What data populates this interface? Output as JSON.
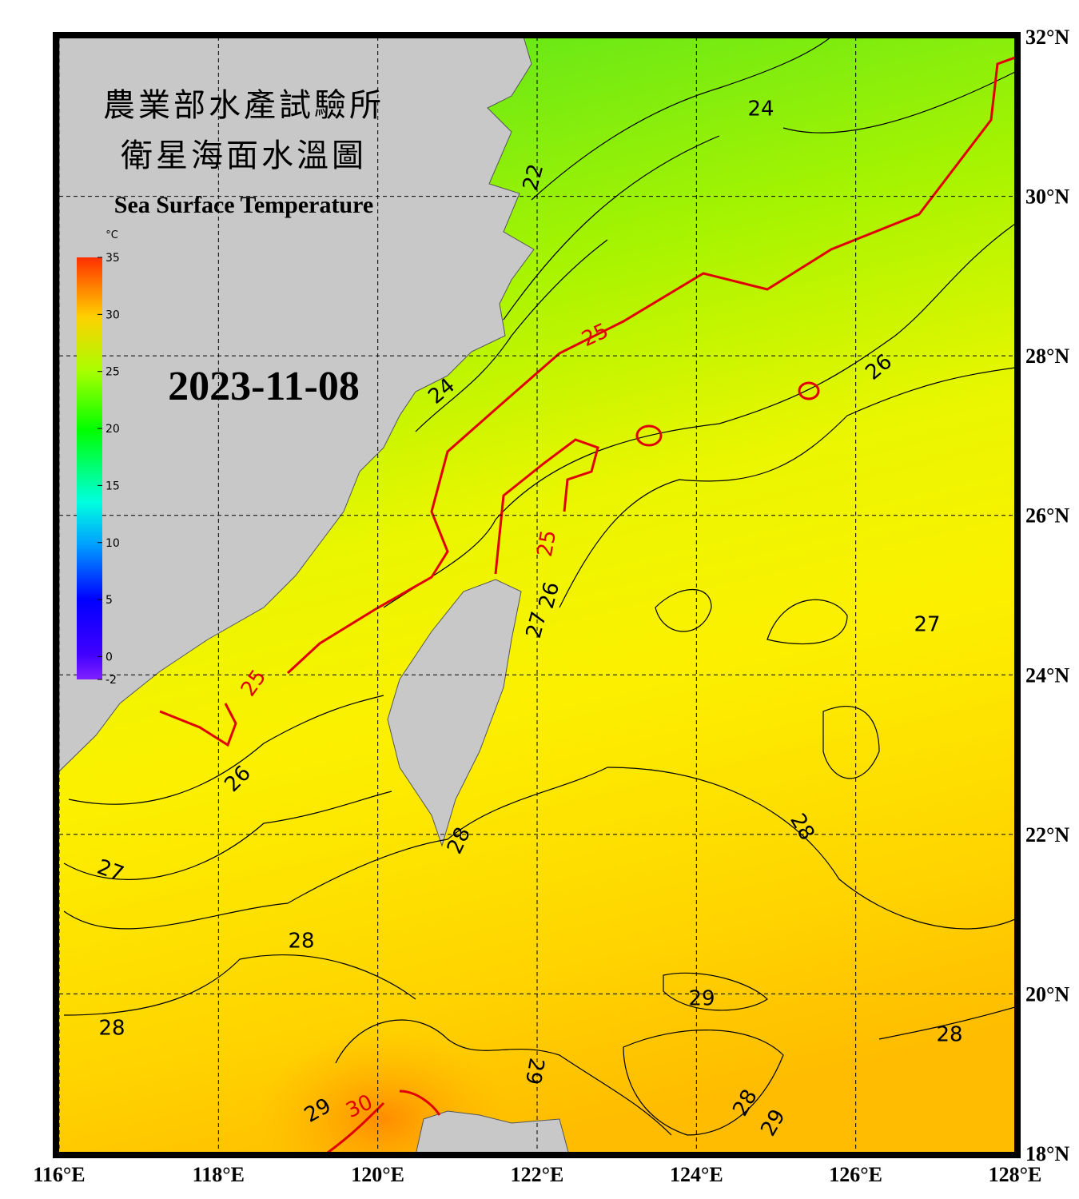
{
  "title_zh_1": "農業部水產試驗所",
  "title_zh_2": "衛星海面水溫圖",
  "title_en": "Sea Surface Temperature",
  "date": "2023-11-08",
  "colorbar": {
    "unit": "°C",
    "range": [
      -2,
      35
    ],
    "ticks": [
      35,
      30,
      25,
      20,
      15,
      10,
      5,
      0,
      -2
    ]
  },
  "lon_range": [
    116,
    128
  ],
  "lat_range": [
    18,
    32
  ],
  "lon_ticks": [
    {
      "value": 116,
      "label": "116°E"
    },
    {
      "value": 118,
      "label": "118°E"
    },
    {
      "value": 120,
      "label": "120°E"
    },
    {
      "value": 122,
      "label": "122°E"
    },
    {
      "value": 124,
      "label": "124°E"
    },
    {
      "value": 126,
      "label": "126°E"
    },
    {
      "value": 128,
      "label": "128°E"
    }
  ],
  "lat_ticks": [
    {
      "value": 32,
      "label": "32°N"
    },
    {
      "value": 30,
      "label": "30°N"
    },
    {
      "value": 28,
      "label": "28°N"
    },
    {
      "value": 26,
      "label": "26°N"
    },
    {
      "value": 24,
      "label": "24°N"
    },
    {
      "value": 22,
      "label": "22°N"
    },
    {
      "value": 20,
      "label": "20°N"
    },
    {
      "value": 18,
      "label": "18°N"
    }
  ],
  "contour_labels": [
    "24",
    "22",
    "24",
    "25",
    "26",
    "25",
    "26",
    "27",
    "27",
    "25",
    "26",
    "27",
    "28",
    "28",
    "28",
    "29",
    "28",
    "28",
    "29",
    "28",
    "29",
    "29",
    "30"
  ]
}
